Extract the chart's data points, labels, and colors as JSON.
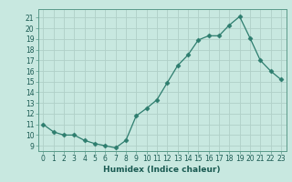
{
  "x": [
    0,
    1,
    2,
    3,
    4,
    5,
    6,
    7,
    8,
    9,
    10,
    11,
    12,
    13,
    14,
    15,
    16,
    17,
    18,
    19,
    20,
    21,
    22,
    23
  ],
  "y": [
    11.0,
    10.3,
    10.0,
    10.0,
    9.5,
    9.2,
    9.0,
    8.8,
    9.5,
    11.8,
    12.5,
    13.3,
    14.9,
    16.5,
    17.5,
    18.9,
    19.3,
    19.3,
    20.3,
    21.1,
    19.1,
    17.0,
    16.0,
    15.2
  ],
  "xlabel": "Humidex (Indice chaleur)",
  "line_color": "#2d7d6e",
  "marker": "D",
  "marker_size": 2.5,
  "bg_color": "#c8e8e0",
  "grid_color": "#b0d0c8",
  "ylim": [
    8.5,
    21.8
  ],
  "xlim": [
    -0.5,
    23.5
  ],
  "yticks": [
    9,
    10,
    11,
    12,
    13,
    14,
    15,
    16,
    17,
    18,
    19,
    20,
    21
  ],
  "xticks": [
    0,
    1,
    2,
    3,
    4,
    5,
    6,
    7,
    8,
    9,
    10,
    11,
    12,
    13,
    14,
    15,
    16,
    17,
    18,
    19,
    20,
    21,
    22,
    23
  ],
  "tick_fontsize": 5.5,
  "xlabel_fontsize": 6.5
}
